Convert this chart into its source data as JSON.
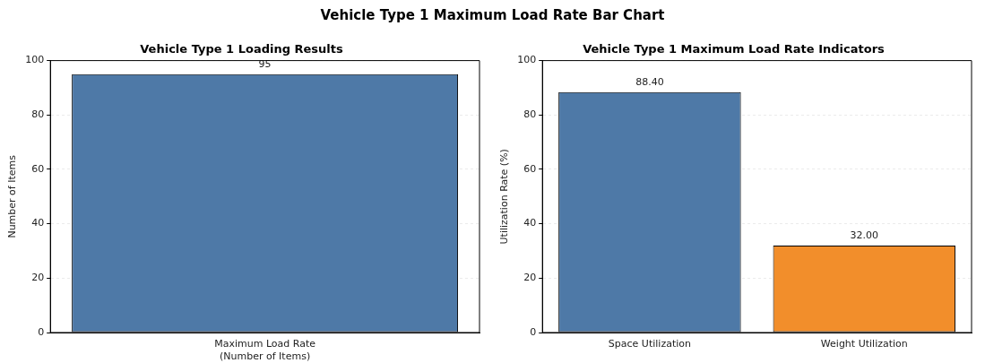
{
  "chart_data": [
    {
      "type": "other",
      "title": "Vehicle Type 1 Maximum Load Rate Bar Chart"
    },
    {
      "type": "bar",
      "title": "Vehicle Type 1 Loading Results",
      "ylabel": "Number of Items",
      "categories": [
        "Maximum Load Rate\n(Number of Items)"
      ],
      "values": [
        95
      ],
      "colors": [
        "#4e79a7"
      ],
      "value_labels": [
        "95"
      ],
      "ylim": [
        0,
        100
      ],
      "yticks": [
        0,
        20,
        40,
        60,
        80,
        100
      ],
      "grid": "y"
    },
    {
      "type": "bar",
      "title": "Vehicle Type 1 Maximum Load Rate Indicators",
      "ylabel": "Utilization Rate (%)",
      "categories": [
        "Space Utilization",
        "Weight Utilization"
      ],
      "values": [
        88.4,
        32
      ],
      "colors": [
        "#4e79a7",
        "#f28e2b"
      ],
      "value_labels": [
        "88.40",
        "32.00"
      ],
      "ylim": [
        0,
        100
      ],
      "yticks": [
        0,
        20,
        40,
        60,
        80,
        100
      ],
      "grid": "y"
    }
  ]
}
